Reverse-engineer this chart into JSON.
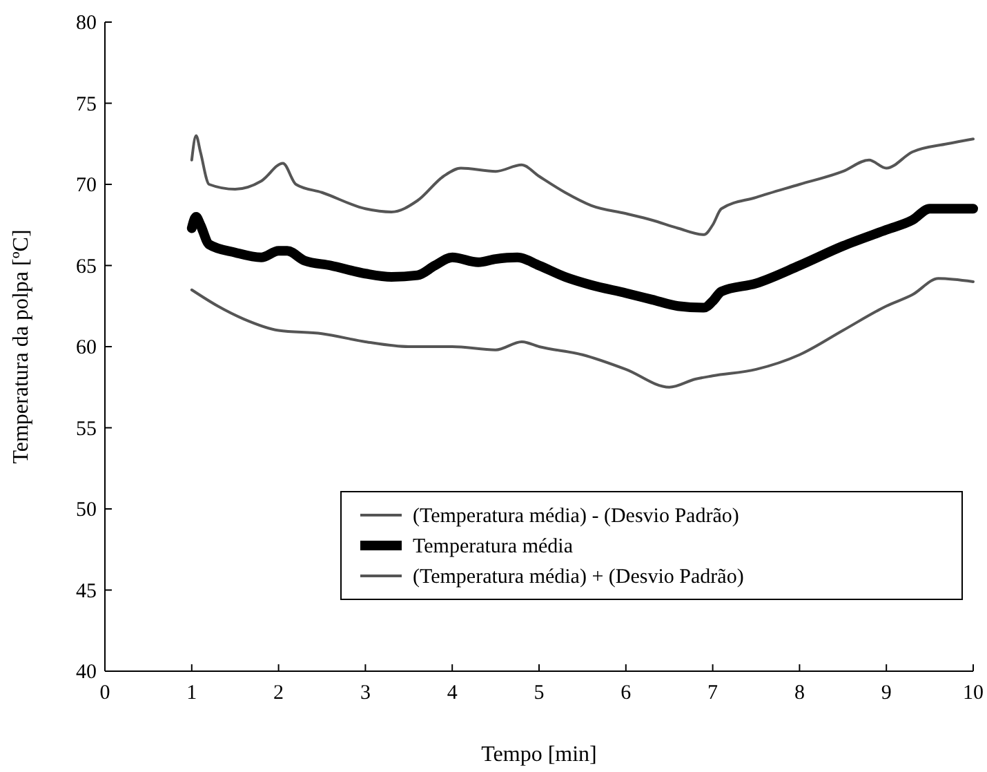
{
  "chart_data": {
    "type": "line",
    "xlabel": "Tempo [min]",
    "ylabel": "Temperatura da polpa [ºC]",
    "xlim": [
      0,
      10
    ],
    "xticks": [
      0,
      1,
      2,
      3,
      4,
      5,
      6,
      7,
      8,
      9,
      10
    ],
    "ylim": [
      40,
      80
    ],
    "yticks": [
      40,
      45,
      50,
      55,
      60,
      65,
      70,
      75,
      80
    ],
    "legend": "bottom right",
    "grid": false,
    "marker": "none",
    "line_style": "solid",
    "series": [
      {
        "name": "(Temperatura média) - (Desvio Padrão)",
        "color": "#555555",
        "x": [
          1.0,
          1.3,
          1.6,
          2.0,
          2.5,
          3.0,
          3.5,
          4.0,
          4.5,
          4.8,
          5.0,
          5.5,
          6.0,
          6.5,
          6.8,
          7.0,
          7.5,
          8.0,
          8.5,
          9.0,
          9.3,
          9.6,
          10.0
        ],
        "values": [
          63.5,
          62.5,
          61.7,
          61.0,
          60.8,
          60.3,
          60.0,
          60.0,
          59.8,
          60.3,
          60.0,
          59.5,
          58.6,
          57.5,
          58.0,
          58.2,
          58.6,
          59.5,
          61.0,
          62.5,
          63.2,
          64.2,
          64.0
        ]
      },
      {
        "name": "Temperatura média",
        "color": "#000000",
        "x": [
          1.0,
          1.05,
          1.1,
          1.2,
          1.5,
          1.8,
          2.0,
          2.1,
          2.3,
          2.6,
          3.0,
          3.3,
          3.6,
          3.8,
          4.0,
          4.3,
          4.5,
          4.75,
          5.0,
          5.3,
          5.6,
          6.0,
          6.3,
          6.6,
          6.9,
          7.0,
          7.1,
          7.5,
          8.0,
          8.5,
          9.0,
          9.3,
          9.5,
          10.0
        ],
        "values": [
          67.3,
          68.0,
          67.5,
          66.3,
          65.8,
          65.5,
          65.9,
          65.9,
          65.3,
          65.0,
          64.5,
          64.3,
          64.4,
          65.0,
          65.5,
          65.2,
          65.4,
          65.5,
          65.0,
          64.3,
          63.8,
          63.3,
          62.9,
          62.5,
          62.4,
          62.8,
          63.4,
          63.9,
          65.0,
          66.2,
          67.2,
          67.8,
          68.5,
          68.5
        ]
      },
      {
        "name": "(Temperatura média) + (Desvio Padrão)",
        "color": "#555555",
        "x": [
          1.0,
          1.05,
          1.1,
          1.2,
          1.5,
          1.8,
          2.05,
          2.2,
          2.5,
          3.0,
          3.3,
          3.6,
          3.9,
          4.1,
          4.5,
          4.8,
          5.0,
          5.3,
          5.6,
          6.0,
          6.3,
          6.6,
          6.9,
          7.0,
          7.1,
          7.5,
          8.0,
          8.5,
          8.8,
          9.0,
          9.3,
          9.7,
          10.0
        ],
        "values": [
          71.5,
          73.0,
          72.0,
          70.0,
          69.7,
          70.2,
          71.3,
          70.0,
          69.5,
          68.5,
          68.3,
          69.0,
          70.5,
          71.0,
          70.8,
          71.2,
          70.5,
          69.5,
          68.7,
          68.2,
          67.8,
          67.3,
          66.9,
          67.5,
          68.5,
          69.2,
          70.0,
          70.8,
          71.5,
          71.0,
          72.0,
          72.5,
          72.8
        ]
      }
    ]
  }
}
